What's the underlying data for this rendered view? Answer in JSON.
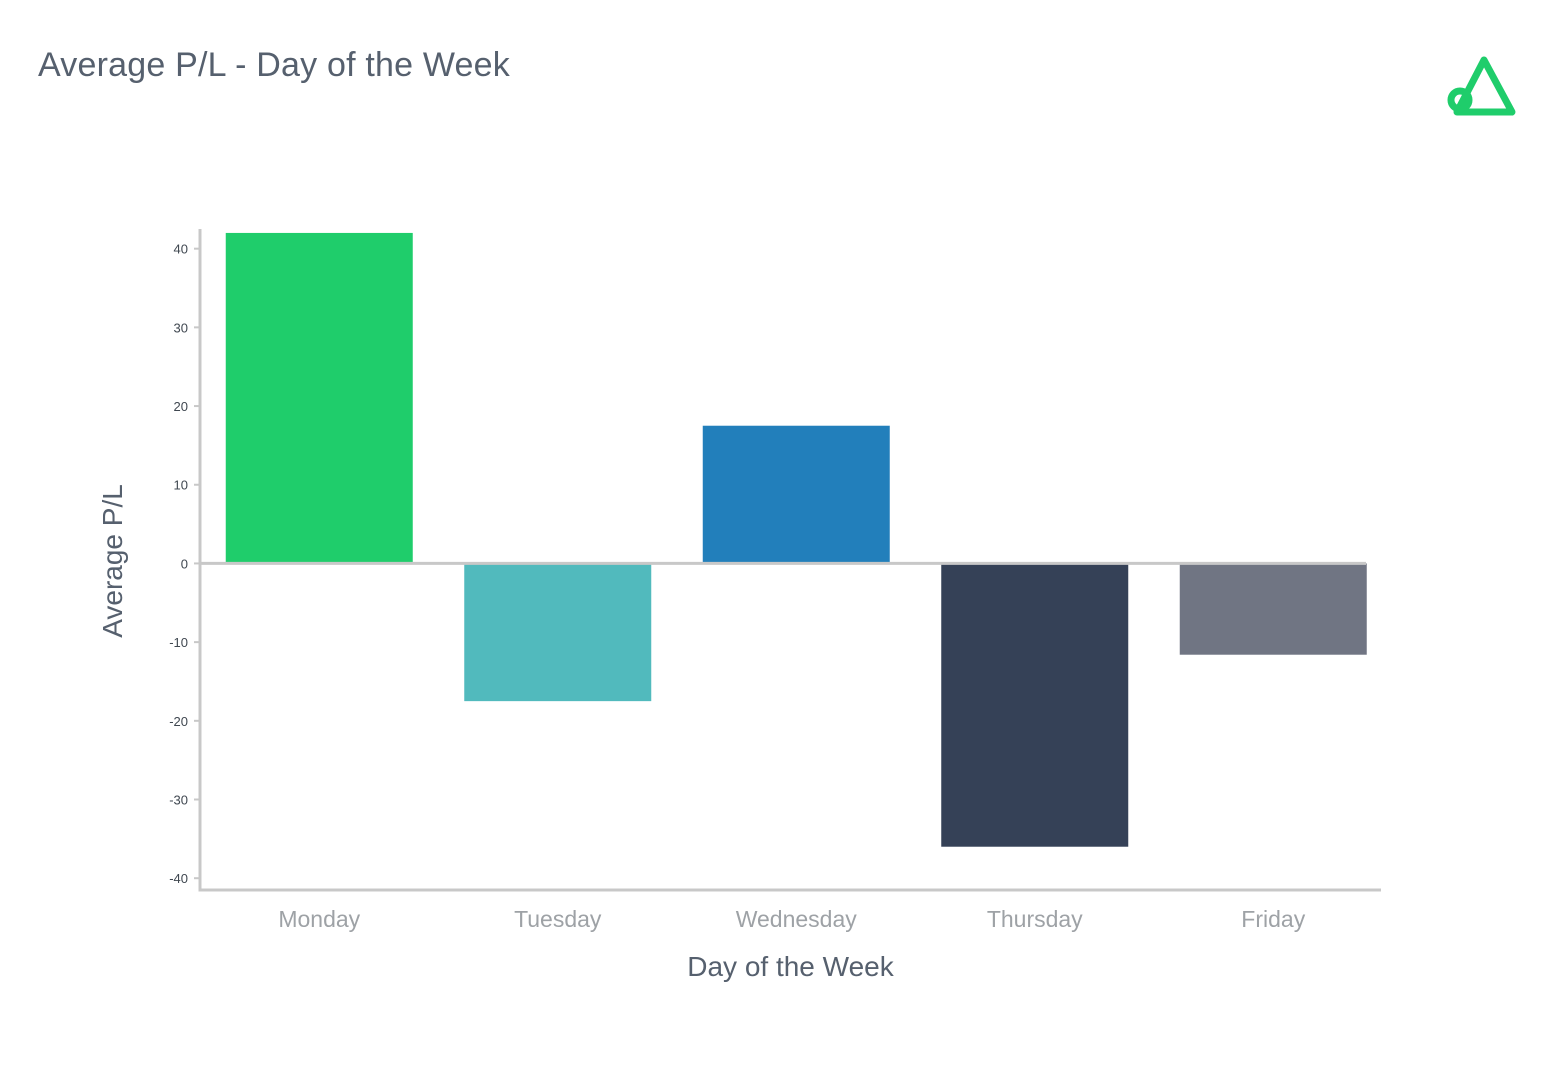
{
  "colors": {
    "title_text": "#56606e",
    "axis_line": "#c8c8c8",
    "tick_text": "#3f4750",
    "category_text": "#9ea2a6",
    "axis_title_text": "#56606e",
    "brand": "#1fcd6b"
  },
  "brand_logo": {
    "icon": "brand-logo-icon",
    "color": "#1fcd6b"
  },
  "chart_data": {
    "type": "bar",
    "title": "Average P/L - Day of the Week",
    "xlabel": "Day of the Week",
    "ylabel": "Average P/L",
    "categories": [
      "Monday",
      "Tuesday",
      "Wednesday",
      "Thursday",
      "Friday"
    ],
    "values": [
      42,
      -17.5,
      17.5,
      -36,
      -11.6
    ],
    "bar_colors": [
      "#1fcd6b",
      "#51babd",
      "#227fbb",
      "#354157",
      "#707583"
    ],
    "ylim": [
      -41.5,
      42.5
    ],
    "yticks": [
      40,
      30,
      20,
      10,
      0,
      -10,
      -20,
      -30,
      -40
    ],
    "grid": false,
    "legend": "none"
  }
}
